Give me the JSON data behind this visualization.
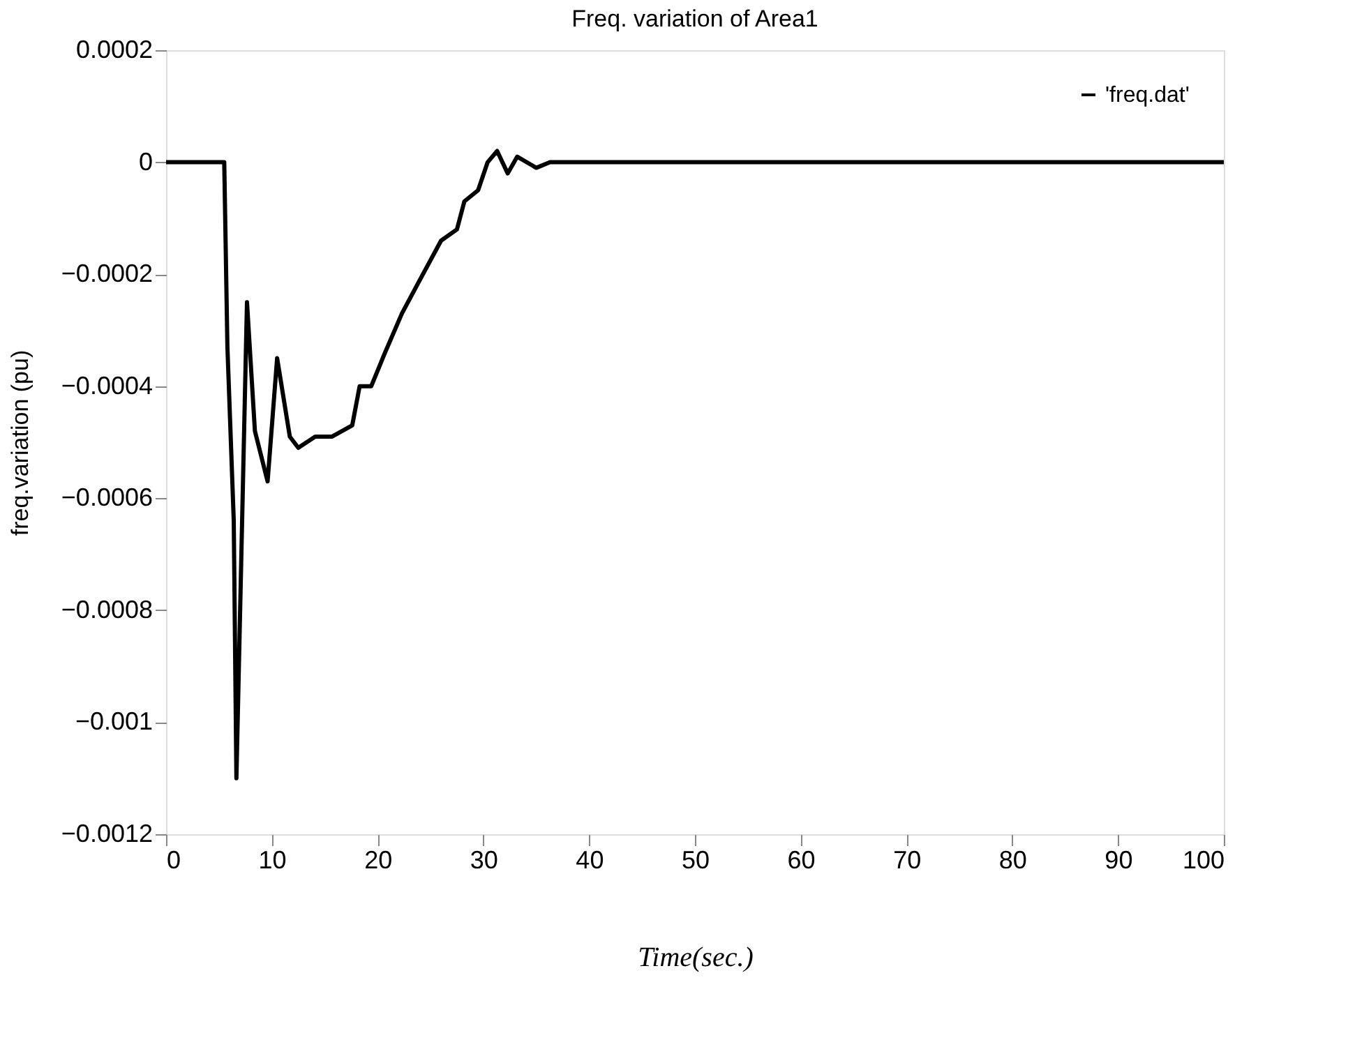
{
  "chart_data": {
    "type": "line",
    "title": "Freq. variation of Area1",
    "xlabel": "Time(sec.)",
    "ylabel": "freq.variation (pu)",
    "x": [
      0,
      5.5,
      5.8,
      6.4,
      6.65,
      7.65,
      8.4,
      9.6,
      10.5,
      11.7,
      12.5,
      14.1,
      15.7,
      17.6,
      18.3,
      19.4,
      20.7,
      22.3,
      24.0,
      26.0,
      27.5,
      28.2,
      29.5,
      30.4,
      31.3,
      32.3,
      33.2,
      35.0,
      36.3,
      37.6,
      39.0,
      40.5,
      100
    ],
    "series": [
      {
        "name": "'freq.dat'",
        "color": "#000000",
        "values": [
          0,
          0,
          -0.00033,
          -0.00064,
          -0.0011,
          -0.00025,
          -0.00048,
          -0.00057,
          -0.00035,
          -0.00049,
          -0.00051,
          -0.00049,
          -0.00049,
          -0.00047,
          -0.0004,
          -0.0004,
          -0.00034,
          -0.00027,
          -0.00021,
          -0.00014,
          -0.00012,
          -7e-05,
          -5e-05,
          0,
          2e-05,
          -2e-05,
          1e-05,
          -1e-05,
          0,
          0,
          0,
          0,
          0
        ]
      }
    ],
    "xlim": [
      0,
      100
    ],
    "xticks": [
      0,
      10,
      20,
      30,
      40,
      50,
      60,
      70,
      80,
      90,
      100
    ],
    "ylim": [
      -0.0012,
      0.0002
    ],
    "yticks": [
      -0.0012,
      -0.001,
      -0.0008,
      -0.0006,
      -0.0004,
      -0.0002,
      0,
      0.0002
    ],
    "grid": false,
    "legend": "top right",
    "marker": "none",
    "line_style": "solid"
  }
}
